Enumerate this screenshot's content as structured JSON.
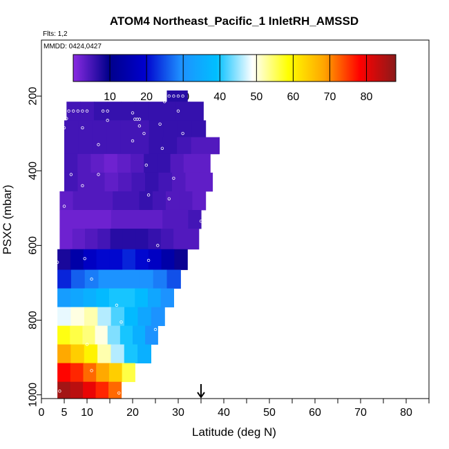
{
  "chart_data": {
    "type": "heatmap",
    "title": "ATOM4 Northeast_Pacific_1 InletRH_AMSSD",
    "flights_note": "Flts: 1,2",
    "dates_note": "MMDD: 0424,0427",
    "xlabel": "Latitude (deg N)",
    "ylabel": "PSXC (mbar)",
    "xlim": [
      0,
      85
    ],
    "ylim": [
      1010,
      50
    ],
    "y_reversed": true,
    "x_ticks": [
      0,
      5,
      10,
      20,
      30,
      40,
      50,
      60,
      70,
      80
    ],
    "x_minor_ticks": [
      0,
      5,
      10,
      15,
      20,
      25,
      30,
      35,
      40,
      45,
      50,
      55,
      60,
      65,
      70,
      75,
      80,
      85
    ],
    "y_ticks": [
      200,
      400,
      600,
      800,
      1000
    ],
    "colorbar": {
      "min": 0,
      "max": 88,
      "ticks": [
        10,
        20,
        30,
        40,
        50,
        60,
        70,
        80
      ],
      "colors": [
        "#8a2be2",
        "#00008b",
        "#0000cd",
        "#1e90ff",
        "#00bfff",
        "#ffffff",
        "#ffff00",
        "#ffa500",
        "#ff0000",
        "#8b1a1a"
      ]
    },
    "marker": {
      "type": "arrow",
      "x": 35
    },
    "rows": [
      {
        "p_top": 185,
        "p_bot": 215,
        "x_start": 27.5,
        "x_end": 32,
        "vals": [
          7,
          7
        ]
      },
      {
        "p_top": 215,
        "p_bot": 265,
        "x_start": 5.5,
        "x_end": 35.5,
        "vals": [
          5,
          5,
          6,
          6,
          6,
          6,
          6,
          6,
          6,
          6
        ]
      },
      {
        "p_top": 265,
        "p_bot": 310,
        "x_start": 5,
        "x_end": 36,
        "vals": [
          5,
          5,
          5,
          5,
          5,
          5,
          6,
          6,
          6,
          6
        ]
      },
      {
        "p_top": 310,
        "p_bot": 355,
        "x_start": 5,
        "x_end": 39,
        "vals": [
          5,
          5,
          5,
          5,
          5,
          5,
          6,
          6,
          5,
          4,
          4
        ]
      },
      {
        "p_top": 355,
        "p_bot": 405,
        "x_start": 5,
        "x_end": 37,
        "vals": [
          5,
          4,
          3,
          2,
          3,
          4,
          6,
          6,
          4,
          3,
          3
        ]
      },
      {
        "p_top": 405,
        "p_bot": 455,
        "x_start": 5,
        "x_end": 37.5,
        "vals": [
          5,
          4,
          4,
          3,
          4,
          5,
          6,
          5,
          4,
          3,
          3
        ]
      },
      {
        "p_top": 455,
        "p_bot": 505,
        "x_start": 4,
        "x_end": 36,
        "vals": [
          3,
          4,
          4,
          4,
          5,
          5,
          6,
          5,
          4,
          4,
          3
        ]
      },
      {
        "p_top": 505,
        "p_bot": 555,
        "x_start": 4,
        "x_end": 35,
        "vals": [
          2,
          2,
          2,
          2,
          3,
          3,
          3,
          3,
          4,
          4,
          5
        ]
      },
      {
        "p_top": 555,
        "p_bot": 610,
        "x_start": 4,
        "x_end": 34.5,
        "vals": [
          2,
          3,
          4,
          5,
          7,
          7,
          7,
          6,
          5,
          4,
          4
        ]
      },
      {
        "p_top": 610,
        "p_bot": 665,
        "x_start": 3.5,
        "x_end": 32,
        "vals": [
          8,
          14,
          18,
          20,
          20,
          22,
          20,
          18,
          14,
          9
        ]
      },
      {
        "p_top": 665,
        "p_bot": 715,
        "x_start": 3.5,
        "x_end": 30.5,
        "vals": [
          22,
          26,
          28,
          30,
          30,
          30,
          30,
          28,
          25
        ]
      },
      {
        "p_top": 715,
        "p_bot": 765,
        "x_start": 3.5,
        "x_end": 29,
        "vals": [
          32,
          34,
          36,
          38,
          40,
          40,
          38,
          34,
          30
        ]
      },
      {
        "p_top": 765,
        "p_bot": 815,
        "x_start": 3.5,
        "x_end": 27,
        "vals": [
          48,
          50,
          52,
          46,
          42,
          38,
          34,
          30
        ]
      },
      {
        "p_top": 815,
        "p_bot": 865,
        "x_start": 3.5,
        "x_end": 25.5,
        "vals": [
          58,
          56,
          54,
          50,
          44,
          40,
          36,
          30
        ]
      },
      {
        "p_top": 865,
        "p_bot": 915,
        "x_start": 3.5,
        "x_end": 24,
        "vals": [
          68,
          64,
          60,
          52,
          46,
          40,
          36
        ]
      },
      {
        "p_top": 915,
        "p_bot": 965,
        "x_start": 3.5,
        "x_end": 20.5,
        "vals": [
          78,
          76,
          72,
          68,
          64,
          56
        ]
      },
      {
        "p_top": 965,
        "p_bot": 1010,
        "x_start": 3.5,
        "x_end": 17.5,
        "vals": [
          86,
          84,
          80,
          76,
          72
        ]
      }
    ],
    "points": [
      {
        "x": 28,
        "p": 200
      },
      {
        "x": 29,
        "p": 200
      },
      {
        "x": 30,
        "p": 200
      },
      {
        "x": 31,
        "p": 200
      },
      {
        "x": 27,
        "p": 215
      },
      {
        "x": 6,
        "p": 240
      },
      {
        "x": 7,
        "p": 240
      },
      {
        "x": 8,
        "p": 240
      },
      {
        "x": 9,
        "p": 240
      },
      {
        "x": 10,
        "p": 240
      },
      {
        "x": 13.5,
        "p": 240
      },
      {
        "x": 14.5,
        "p": 240
      },
      {
        "x": 20,
        "p": 245
      },
      {
        "x": 30,
        "p": 240
      },
      {
        "x": 5.5,
        "p": 260
      },
      {
        "x": 14.5,
        "p": 265
      },
      {
        "x": 20.5,
        "p": 262
      },
      {
        "x": 21,
        "p": 262
      },
      {
        "x": 21.5,
        "p": 262
      },
      {
        "x": 5,
        "p": 285
      },
      {
        "x": 9,
        "p": 285
      },
      {
        "x": 21.5,
        "p": 280
      },
      {
        "x": 26,
        "p": 275
      },
      {
        "x": 22.5,
        "p": 300
      },
      {
        "x": 31,
        "p": 300
      },
      {
        "x": 20,
        "p": 320
      },
      {
        "x": 12.5,
        "p": 330
      },
      {
        "x": 26.5,
        "p": 340
      },
      {
        "x": 39,
        "p": 360
      },
      {
        "x": 39,
        "p": 380
      },
      {
        "x": 23,
        "p": 385
      },
      {
        "x": 39,
        "p": 395
      },
      {
        "x": 6.5,
        "p": 410
      },
      {
        "x": 12.5,
        "p": 410
      },
      {
        "x": 29,
        "p": 420
      },
      {
        "x": 9,
        "p": 440
      },
      {
        "x": 23.5,
        "p": 465
      },
      {
        "x": 28,
        "p": 475
      },
      {
        "x": 5,
        "p": 495
      },
      {
        "x": 35,
        "p": 535
      },
      {
        "x": 35,
        "p": 560
      },
      {
        "x": 25.5,
        "p": 600
      },
      {
        "x": 3.5,
        "p": 645
      },
      {
        "x": 9.5,
        "p": 635
      },
      {
        "x": 23.5,
        "p": 640
      },
      {
        "x": 11,
        "p": 690
      },
      {
        "x": 16.5,
        "p": 760
      },
      {
        "x": 17.5,
        "p": 805
      },
      {
        "x": 25,
        "p": 825
      },
      {
        "x": 10,
        "p": 865
      },
      {
        "x": 11,
        "p": 935
      },
      {
        "x": 4,
        "p": 990
      },
      {
        "x": 17,
        "p": 995
      }
    ]
  }
}
